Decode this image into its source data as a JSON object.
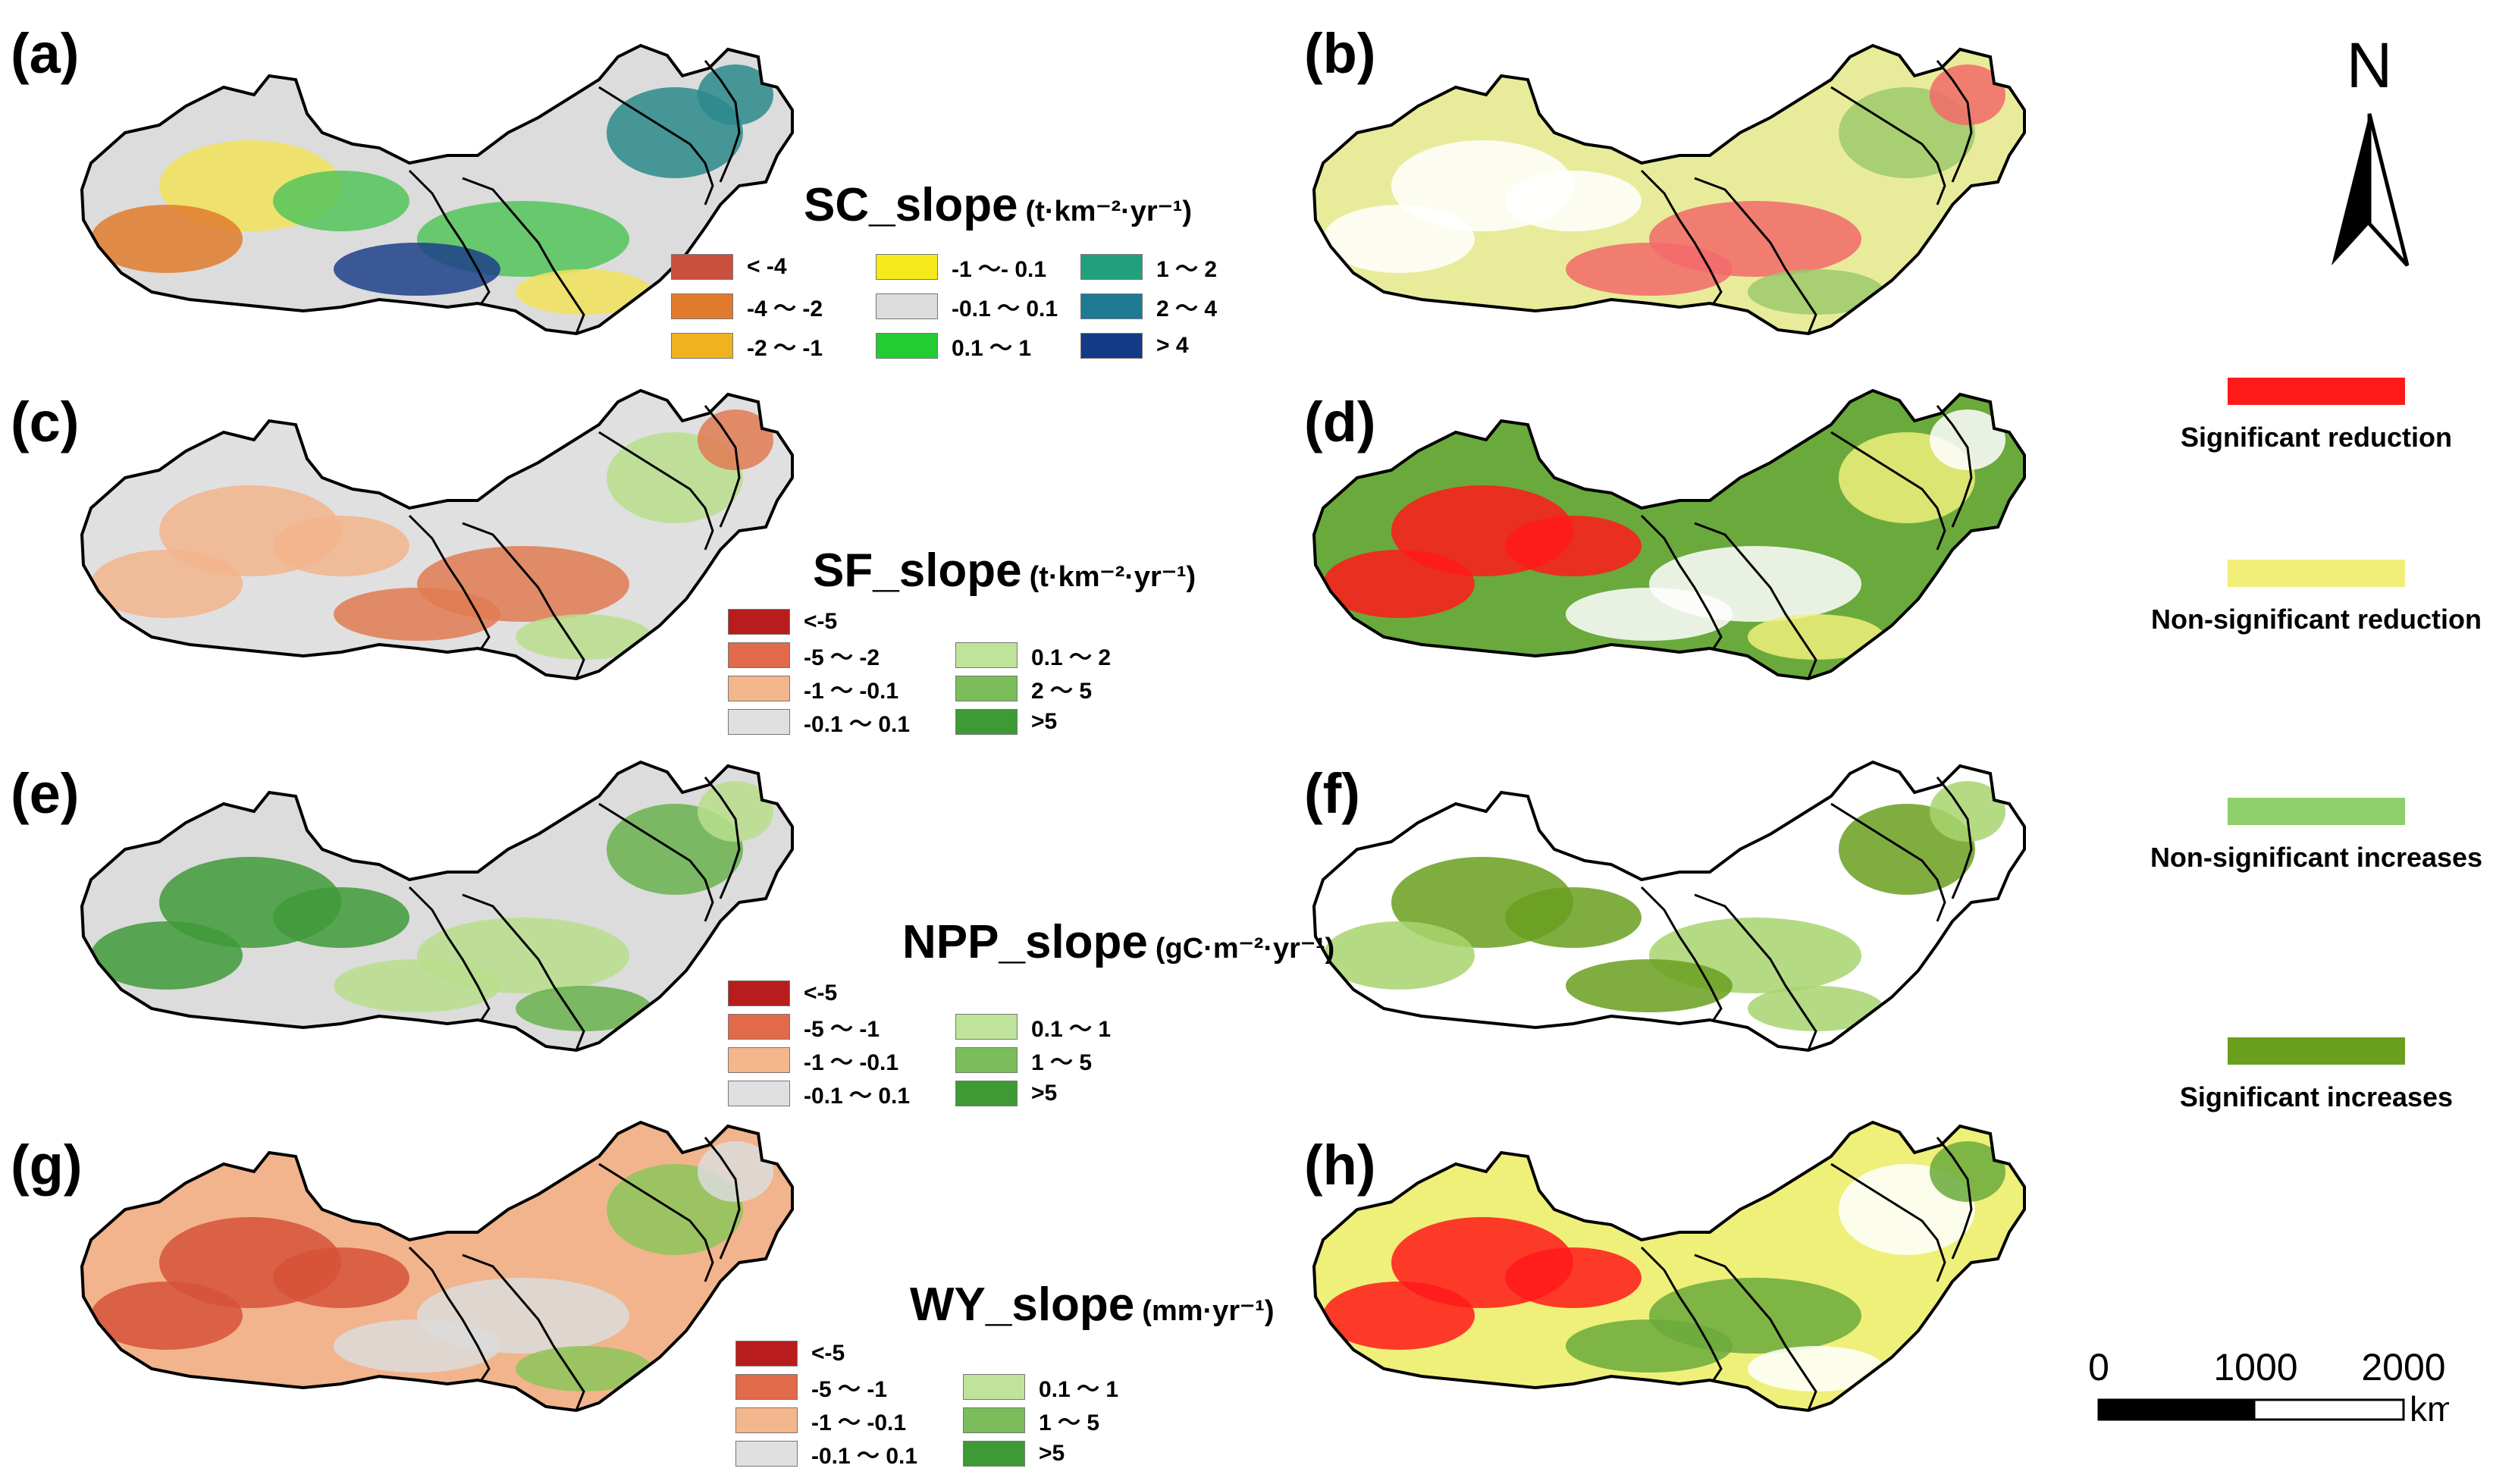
{
  "panels": {
    "a": {
      "label": "(a)",
      "fill": "#dcdcdc",
      "patches": [
        "#f2e25a",
        "#54c45a",
        "#2b8a8c",
        "#e07b2d",
        "#1d3f8a"
      ]
    },
    "b": {
      "label": "(b)",
      "fill": "#e8ec9a",
      "patches": [
        "#ffffff",
        "#f26a6a",
        "#9cca6a"
      ]
    },
    "c": {
      "label": "(c)",
      "fill": "#e0e0e0",
      "patches": [
        "#f2b48c",
        "#e07a52",
        "#b9de8c"
      ]
    },
    "d": {
      "label": "(d)",
      "fill": "#6aaa3c",
      "patches": [
        "#ff1a1a",
        "#ffffff",
        "#eef07a"
      ]
    },
    "e": {
      "label": "(e)",
      "fill": "#dcdcdc",
      "patches": [
        "#3f9a3a",
        "#b9de8c",
        "#68b24e"
      ]
    },
    "f": {
      "label": "(f)",
      "fill": "#ffffff",
      "patches": [
        "#6a9f1e",
        "#a8d46e"
      ]
    },
    "g": {
      "label": "(g)",
      "fill": "#f2b48c",
      "patches": [
        "#d6523a",
        "#dcdcdc",
        "#8dc65a"
      ]
    },
    "h": {
      "label": "(h)",
      "fill": "#eef07a",
      "patches": [
        "#ff1a1a",
        "#6aaa3c",
        "#ffffff"
      ]
    }
  },
  "legends": {
    "sc": {
      "title": "SC_slope",
      "unit": "(t·km⁻²·yr⁻¹)",
      "items": [
        {
          "label": "< -4",
          "color": "#c9503c"
        },
        {
          "label": "-4 ～ -2",
          "color": "#e07b2d"
        },
        {
          "label": "-2 ～ -1",
          "color": "#f0b21e"
        },
        {
          "label": "-1 ～- 0.1",
          "color": "#f7ea1c"
        },
        {
          "label": "-0.1 ～ 0.1",
          "color": "#dcdcdc"
        },
        {
          "label": "0.1 ～ 1",
          "color": "#22cc33"
        },
        {
          "label": "1 ～ 2",
          "color": "#22a07c"
        },
        {
          "label": "2 ～ 4",
          "color": "#1f7a94"
        },
        {
          "label": "> 4",
          "color": "#123a86"
        }
      ]
    },
    "sf": {
      "title": "SF_slope",
      "unit": "(t·km⁻²·yr⁻¹)",
      "items": [
        {
          "label": "<-5",
          "color": "#b81c1c"
        },
        {
          "label": "-5 ～ -2",
          "color": "#e06a4a"
        },
        {
          "label": "-1 ～ -0.1",
          "color": "#f4b68c"
        },
        {
          "label": "-0.1 ～ 0.1",
          "color": "#e0e0e0"
        },
        {
          "label": "0.1 ～ 2",
          "color": "#bfe39a"
        },
        {
          "label": "2 ～ 5",
          "color": "#7bbd5a"
        },
        {
          "label": ">5",
          "color": "#3d9a34"
        }
      ]
    },
    "npp": {
      "title": "NPP_slope",
      "unit": "(gC·m⁻²·yr⁻¹)",
      "items": [
        {
          "label": "<-5",
          "color": "#b81c1c"
        },
        {
          "label": "-5 ～ -1",
          "color": "#e06a4a"
        },
        {
          "label": "-1 ～ -0.1",
          "color": "#f4b68c"
        },
        {
          "label": "-0.1 ～ 0.1",
          "color": "#e0e0e0"
        },
        {
          "label": "0.1 ～ 1",
          "color": "#bfe39a"
        },
        {
          "label": "1 ～ 5",
          "color": "#7bbd5a"
        },
        {
          "label": ">5",
          "color": "#3d9a34"
        }
      ]
    },
    "wy": {
      "title": "WY_slope",
      "unit": "(mm·yr⁻¹)",
      "items": [
        {
          "label": "<-5",
          "color": "#b81c1c"
        },
        {
          "label": "-5 ～ -1",
          "color": "#e06a4a"
        },
        {
          "label": "-1 ～ -0.1",
          "color": "#f4b68c"
        },
        {
          "label": "-0.1 ～ 0.1",
          "color": "#e0e0e0"
        },
        {
          "label": "0.1 ～ 1",
          "color": "#bfe39a"
        },
        {
          "label": "1 ～ 5",
          "color": "#7bbd5a"
        },
        {
          "label": ">5",
          "color": "#3d9a34"
        }
      ]
    }
  },
  "significance": [
    {
      "label": "Significant reduction",
      "color": "#ff1a1a"
    },
    {
      "label": "Non-significant reduction",
      "color": "#f2ee7a"
    },
    {
      "label": "Non-significant increases",
      "color": "#8fd06a"
    },
    {
      "label": "Significant increases",
      "color": "#6a9f1e"
    }
  ],
  "north_arrow": {
    "label": "N",
    "icon": "north-arrow-icon"
  },
  "scale_bar": {
    "ticks": [
      "0",
      "1000",
      "2000"
    ],
    "unit": "km"
  }
}
